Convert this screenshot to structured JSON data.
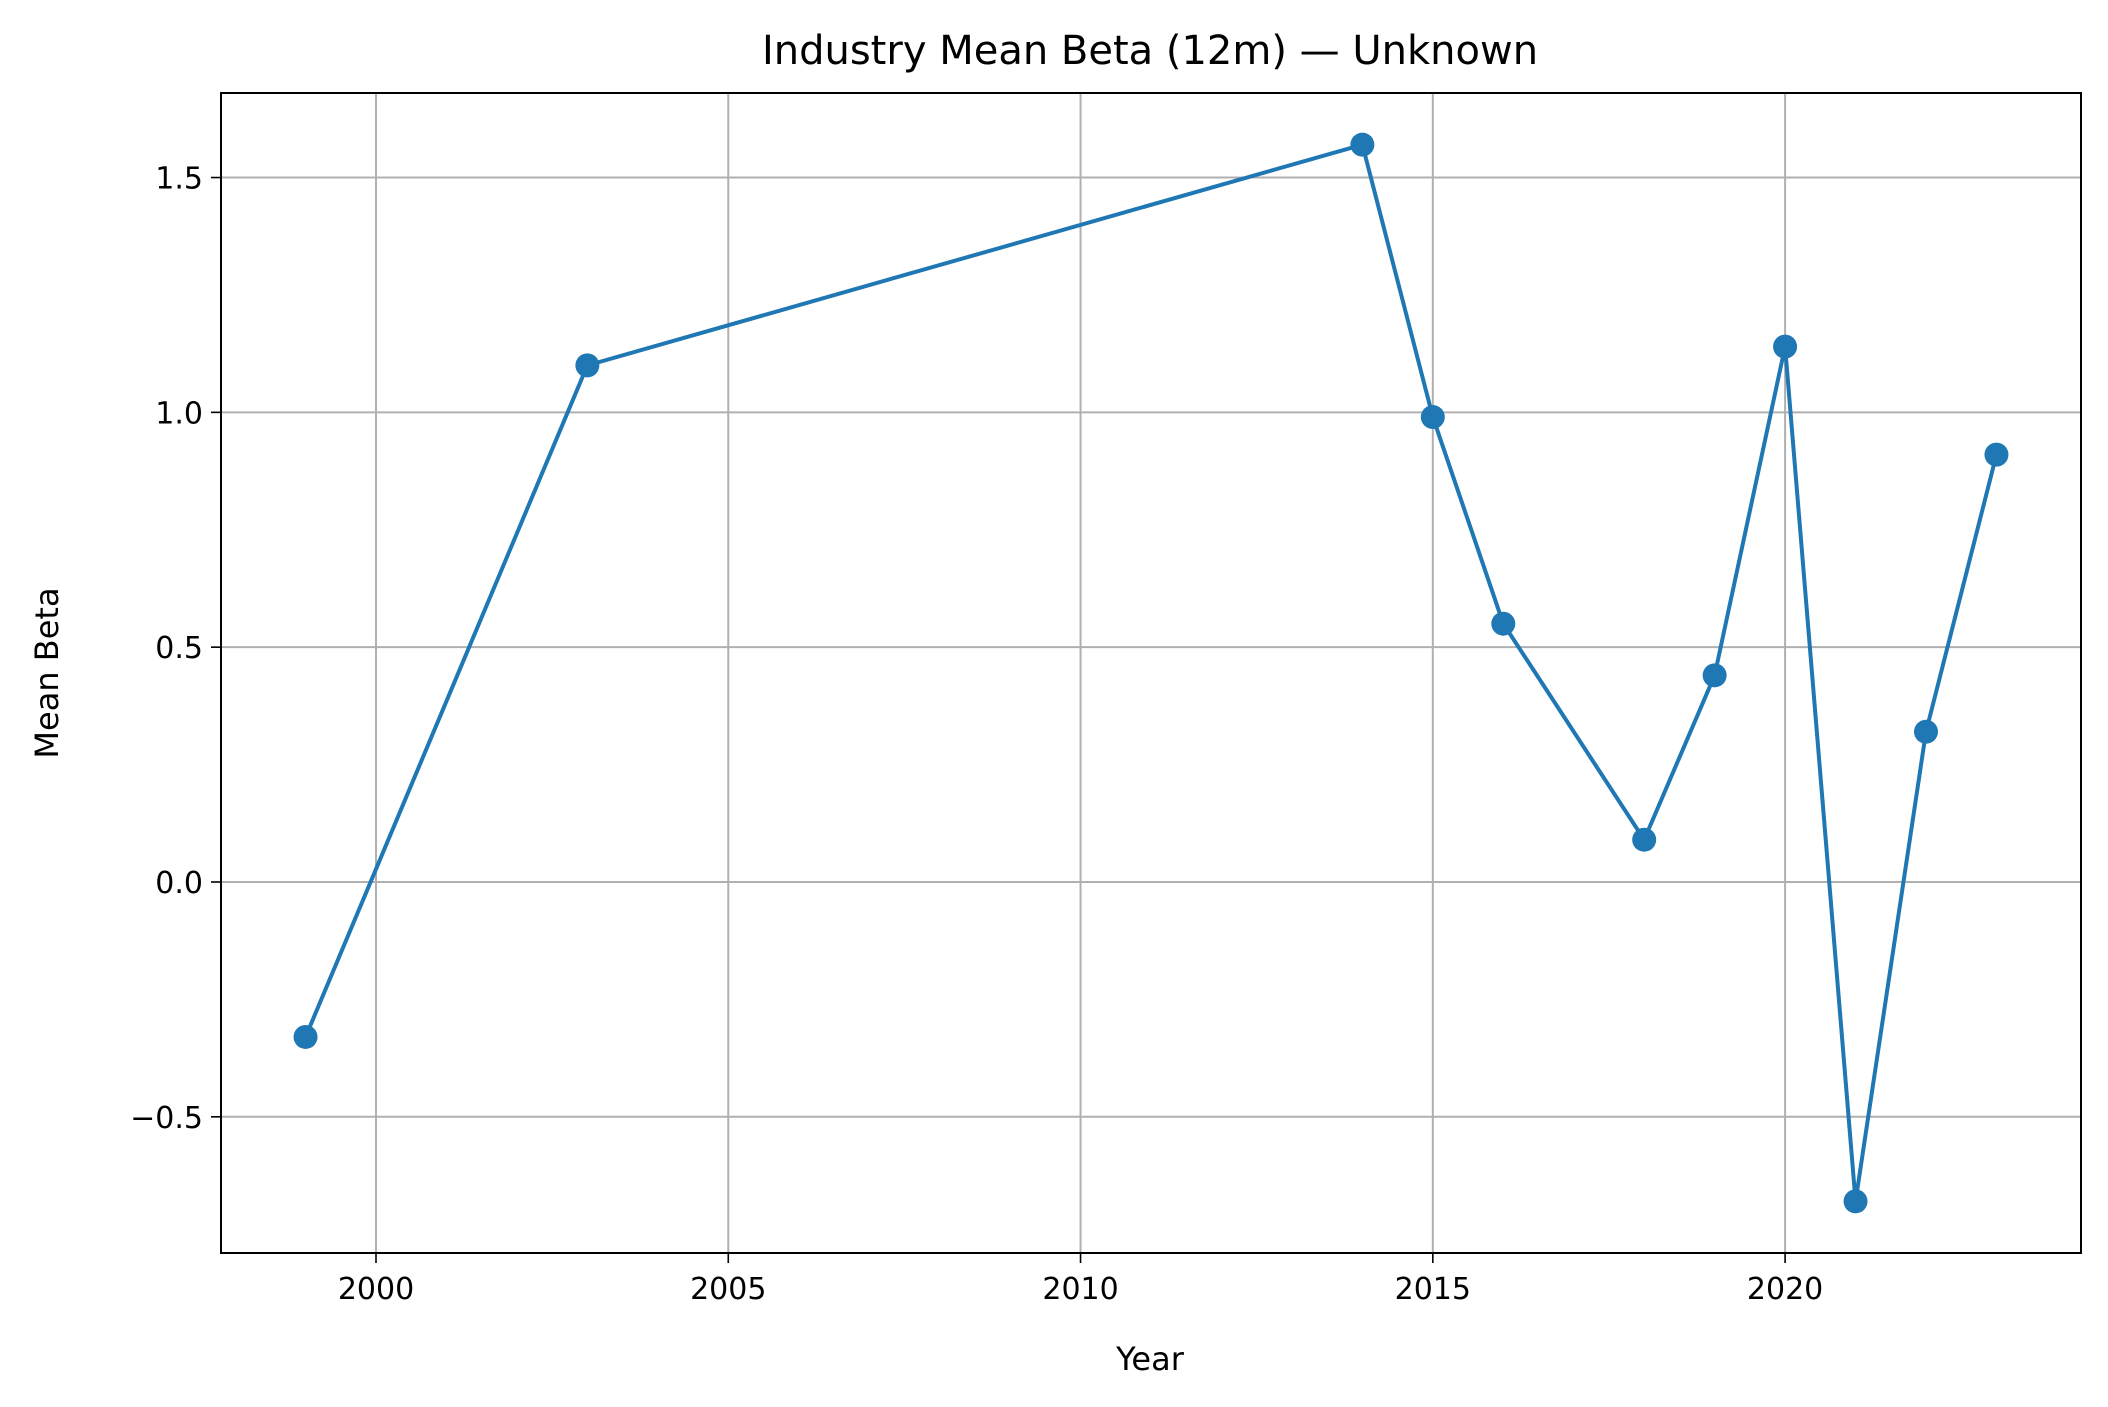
{
  "chart_data": {
    "type": "line",
    "title": "Industry Mean Beta (12m) — Unknown",
    "xlabel": "Year",
    "ylabel": "Mean Beta",
    "xlim": [
      1997.8,
      2024.2
    ],
    "ylim": [
      -0.79,
      1.68
    ],
    "xticks": [
      2000,
      2005,
      2010,
      2015,
      2020
    ],
    "xtick_labels": [
      "2000",
      "2005",
      "2010",
      "2015",
      "2020"
    ],
    "yticks": [
      -0.5,
      0.0,
      0.5,
      1.0,
      1.5
    ],
    "ytick_labels": [
      "−0.5",
      "0.0",
      "0.5",
      "1.0",
      "1.5"
    ],
    "grid": true,
    "series": [
      {
        "color": "#1f77b4",
        "marker": "circle",
        "x": [
          1999,
          2003,
          2014,
          2015,
          2016,
          2018,
          2019,
          2020,
          2021,
          2022,
          2023
        ],
        "y": [
          -0.33,
          1.1,
          1.57,
          0.99,
          0.55,
          0.09,
          0.44,
          1.14,
          -0.68,
          0.32,
          0.91
        ]
      }
    ]
  }
}
